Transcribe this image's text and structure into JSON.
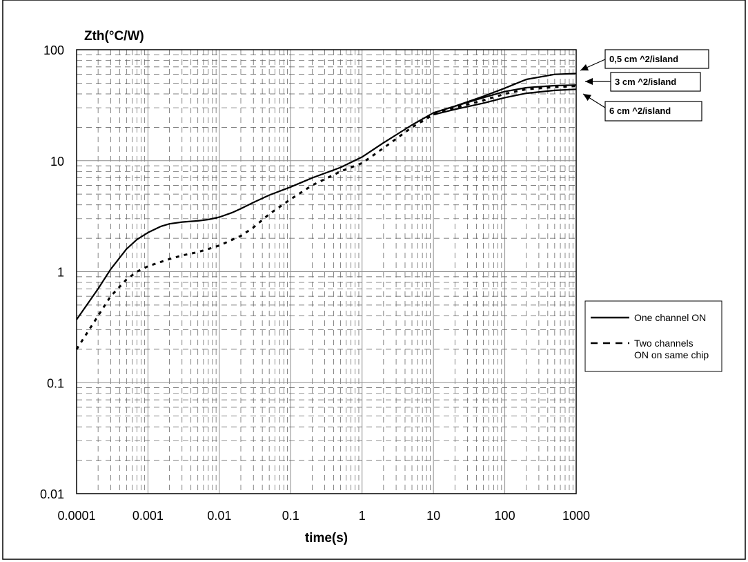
{
  "chart_data": {
    "type": "line",
    "title": "Zth(°C/W)",
    "xlabel": "time(s)",
    "ylabel": "Zth(°C/W)",
    "x_scale": "log",
    "y_scale": "log",
    "xlim": [
      0.0001,
      1000
    ],
    "ylim": [
      0.01,
      100
    ],
    "x_tick_labels": [
      "0.0001",
      "0.001",
      "0.01",
      "0.1",
      "1",
      "10",
      "100",
      "1000"
    ],
    "y_tick_labels": [
      "0.01",
      "0.1",
      "1",
      "10",
      "100"
    ],
    "grid": true,
    "legend": {
      "position": "right",
      "entries": [
        {
          "label": "One channel ON",
          "style": "solid"
        },
        {
          "label": "Two channels ON on same chip",
          "style": "dashed"
        }
      ]
    },
    "annotations": [
      "0,5 cm ^2/island",
      "3 cm ^2/island",
      "6 cm ^2/island"
    ],
    "series": [
      {
        "style": "solid",
        "points": [
          [
            0.0001,
            0.37
          ],
          [
            0.0002,
            0.7
          ],
          [
            0.0003,
            1.05
          ],
          [
            0.0005,
            1.6
          ],
          [
            0.0007,
            1.95
          ],
          [
            0.001,
            2.25
          ],
          [
            0.0015,
            2.55
          ],
          [
            0.002,
            2.7
          ],
          [
            0.003,
            2.8
          ],
          [
            0.005,
            2.87
          ],
          [
            0.007,
            2.95
          ],
          [
            0.01,
            3.1
          ],
          [
            0.015,
            3.4
          ],
          [
            0.02,
            3.7
          ],
          [
            0.03,
            4.2
          ],
          [
            0.05,
            4.9
          ],
          [
            0.1,
            5.8
          ],
          [
            0.2,
            7.0
          ],
          [
            0.5,
            8.7
          ],
          [
            1,
            10.8
          ],
          [
            2,
            14.5
          ],
          [
            5,
            21
          ],
          [
            10,
            27
          ],
          [
            20,
            31
          ],
          [
            50,
            38
          ],
          [
            100,
            45
          ],
          [
            200,
            54
          ],
          [
            500,
            60
          ],
          [
            1000,
            61
          ]
        ]
      },
      {
        "style": "solid",
        "points": [
          [
            10,
            27
          ],
          [
            20,
            31
          ],
          [
            50,
            37
          ],
          [
            100,
            42
          ],
          [
            200,
            45.5
          ],
          [
            500,
            47.5
          ],
          [
            1000,
            48
          ]
        ]
      },
      {
        "style": "solid",
        "points": [
          [
            10,
            26
          ],
          [
            20,
            29
          ],
          [
            50,
            33
          ],
          [
            100,
            37
          ],
          [
            200,
            40.5
          ],
          [
            500,
            43
          ],
          [
            1000,
            44
          ]
        ]
      },
      {
        "style": "dashed",
        "points": [
          [
            0.0001,
            0.2
          ],
          [
            0.0002,
            0.4
          ],
          [
            0.0003,
            0.6
          ],
          [
            0.0005,
            0.85
          ],
          [
            0.0007,
            1.0
          ],
          [
            0.001,
            1.12
          ],
          [
            0.002,
            1.3
          ],
          [
            0.003,
            1.4
          ],
          [
            0.005,
            1.5
          ],
          [
            0.007,
            1.6
          ],
          [
            0.01,
            1.72
          ],
          [
            0.02,
            2.1
          ],
          [
            0.03,
            2.5
          ],
          [
            0.05,
            3.3
          ],
          [
            0.1,
            4.5
          ],
          [
            0.2,
            6.0
          ],
          [
            0.5,
            8.0
          ],
          [
            1,
            9.5
          ],
          [
            2,
            13
          ],
          [
            5,
            20
          ],
          [
            10,
            26
          ],
          [
            20,
            30
          ],
          [
            50,
            35
          ],
          [
            100,
            40
          ],
          [
            200,
            44
          ],
          [
            500,
            46
          ],
          [
            1000,
            47
          ]
        ]
      }
    ]
  }
}
